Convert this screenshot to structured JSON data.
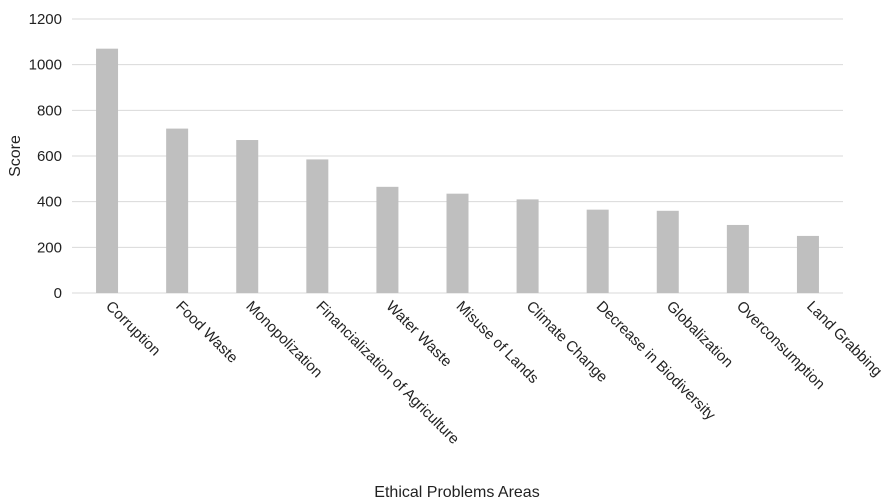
{
  "chart_data": {
    "type": "bar",
    "title": "",
    "xlabel": "Ethical Problems Areas",
    "ylabel": "Score",
    "ylim": [
      0,
      1200
    ],
    "yticks": [
      0,
      200,
      400,
      600,
      800,
      1000,
      1200
    ],
    "grid": true,
    "legend": "none",
    "categories": [
      "Corruption",
      "Food Waste",
      "Monopolization",
      "Financialization of Agriculture",
      "Water Waste",
      "Misuse of Lands",
      "Climate Change",
      "Decrease in Biodiversity",
      "Globalization",
      "Overconsumption",
      "Land Grabbing"
    ],
    "values": [
      1070,
      720,
      670,
      585,
      465,
      435,
      410,
      365,
      360,
      298,
      250
    ],
    "colors": {
      "bar": "#bfbfbf",
      "grid": "#d9d9d9",
      "text": "#222222"
    }
  }
}
